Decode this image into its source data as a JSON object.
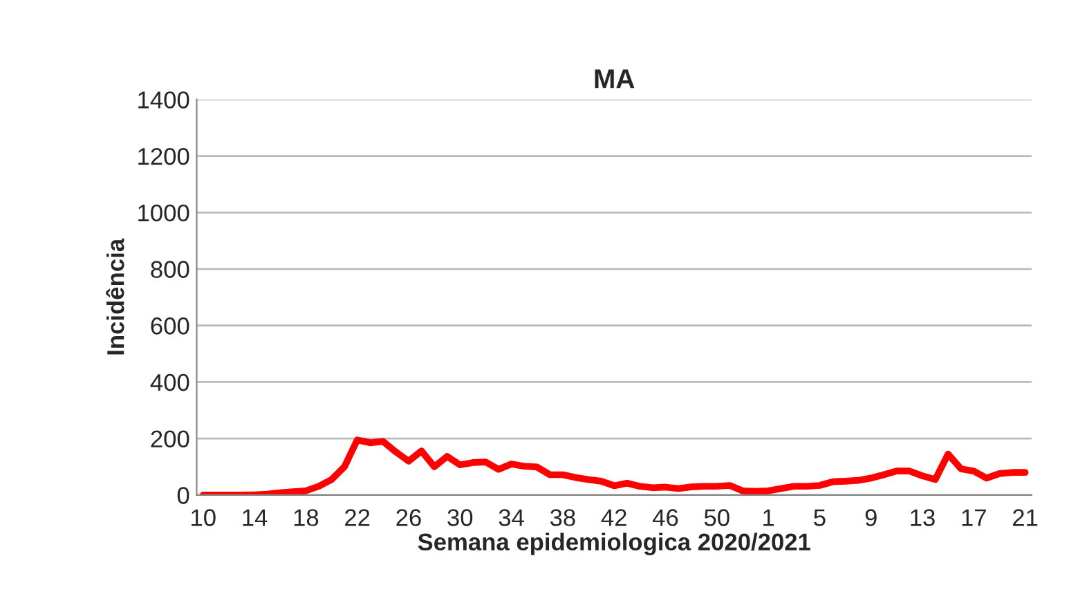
{
  "chart_data": {
    "type": "line",
    "title": "MA",
    "xlabel": "Semana epidemiologica 2020/2021",
    "ylabel": "Incidência",
    "categories": [
      "10",
      null,
      null,
      null,
      "14",
      null,
      null,
      null,
      "18",
      null,
      null,
      null,
      "22",
      null,
      null,
      null,
      "26",
      null,
      null,
      null,
      "30",
      null,
      null,
      null,
      "34",
      null,
      null,
      null,
      "38",
      null,
      null,
      null,
      "42",
      null,
      null,
      null,
      "46",
      null,
      null,
      null,
      "50",
      null,
      null,
      null,
      "1",
      null,
      null,
      null,
      "5",
      null,
      null,
      null,
      "9",
      null,
      null,
      null,
      "13",
      null,
      null,
      null,
      "17",
      null,
      null,
      null,
      "21"
    ],
    "series": [
      {
        "color": "#ff0000",
        "values": [
          0,
          0,
          0,
          0,
          1,
          3,
          8,
          12,
          15,
          31,
          55,
          100,
          195,
          185,
          190,
          153,
          120,
          156,
          100,
          137,
          107,
          115,
          117,
          91,
          110,
          102,
          99,
          72,
          72,
          62,
          55,
          49,
          33,
          42,
          31,
          26,
          28,
          23,
          29,
          31,
          31,
          34,
          15,
          13,
          15,
          23,
          31,
          31,
          34,
          47,
          49,
          52,
          60,
          72,
          85,
          85,
          68,
          55,
          145,
          93,
          85,
          60,
          76,
          80,
          80
        ]
      }
    ],
    "ylim": [
      0,
      1400
    ],
    "yticks": [
      0,
      200,
      400,
      600,
      800,
      1000,
      1200,
      1400
    ],
    "grid": "y",
    "legend": false,
    "line_style": "solid",
    "marker": "none"
  }
}
